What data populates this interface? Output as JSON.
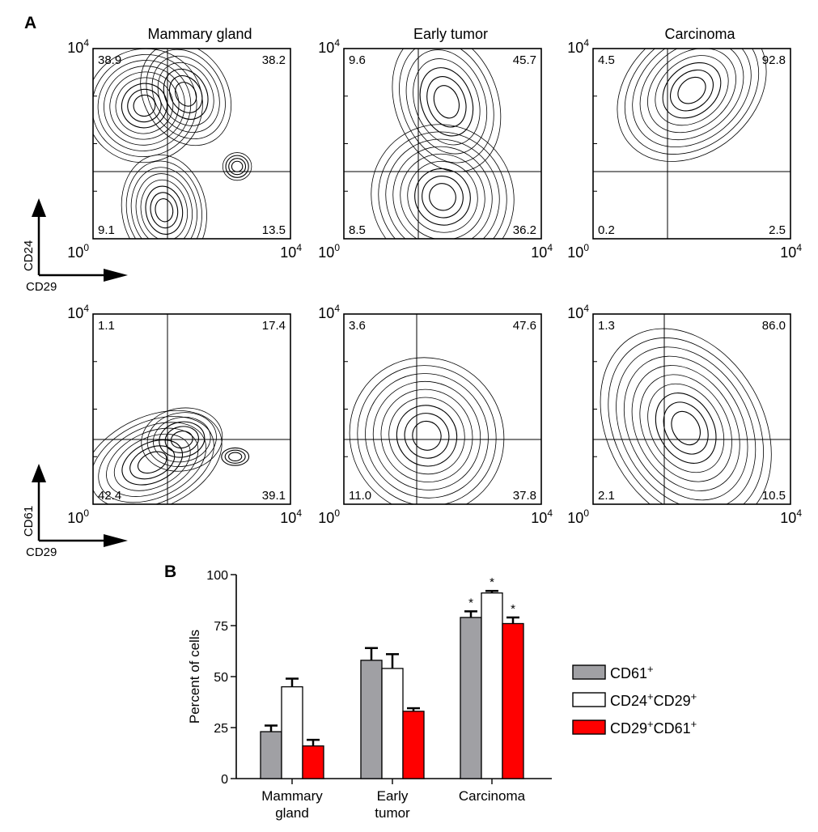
{
  "panel_a": {
    "label": "A",
    "column_titles": [
      "Mammary gland",
      "Early tumor",
      "Carcinoma"
    ],
    "axis_tick_base": "10",
    "axis_tick_low_exp": "0",
    "axis_tick_high_exp": "4",
    "rows": [
      {
        "y_axis_label": "CD24",
        "x_axis_label": "CD29",
        "plots": [
          {
            "upper_left": "38.9",
            "upper_right": "38.2",
            "lower_left": "9.1",
            "lower_right": "13.5"
          },
          {
            "upper_left": "9.6",
            "upper_right": "45.7",
            "lower_left": "8.5",
            "lower_right": "36.2"
          },
          {
            "upper_left": "4.5",
            "upper_right": "92.8",
            "lower_left": "0.2",
            "lower_right": "2.5"
          }
        ]
      },
      {
        "y_axis_label": "CD61",
        "x_axis_label": "CD29",
        "plots": [
          {
            "upper_left": "1.1",
            "upper_right": "17.4",
            "lower_left": "42.4",
            "lower_right": "39.1"
          },
          {
            "upper_left": "3.6",
            "upper_right": "47.6",
            "lower_left": "11.0",
            "lower_right": "37.8"
          },
          {
            "upper_left": "1.3",
            "upper_right": "86.0",
            "lower_left": "2.1",
            "lower_right": "10.5"
          }
        ]
      }
    ]
  },
  "chart_data": {
    "type": "bar",
    "panel_label": "B",
    "categories": [
      [
        "Mammary",
        "gland"
      ],
      [
        "Early",
        "tumor"
      ],
      [
        "Carcinoma"
      ]
    ],
    "ylabel": "Percent of cells",
    "ylim": [
      0,
      100
    ],
    "yticks": [
      "0",
      "25",
      "50",
      "75",
      "100"
    ],
    "legend_position": "right",
    "significance_mark": "*",
    "series": [
      {
        "name": "CD61",
        "name_superscript": "+",
        "color": "#a0a0a4",
        "values": [
          23,
          58,
          79
        ],
        "errors": [
          3,
          6,
          3
        ],
        "significant": [
          false,
          false,
          true
        ]
      },
      {
        "name": "CD24",
        "name_superscript": "+",
        "name_part2": "CD29",
        "name_part2_superscript": "+",
        "color": "#ffffff",
        "values": [
          45,
          54,
          91
        ],
        "errors": [
          4,
          7,
          1
        ],
        "significant": [
          false,
          false,
          true
        ]
      },
      {
        "name": "CD29",
        "name_superscript": "+",
        "name_part2": "CD61",
        "name_part2_superscript": "+",
        "color": "#ff0000",
        "values": [
          16,
          33,
          76
        ],
        "errors": [
          3,
          1.5,
          3
        ],
        "significant": [
          false,
          false,
          true
        ]
      }
    ]
  }
}
